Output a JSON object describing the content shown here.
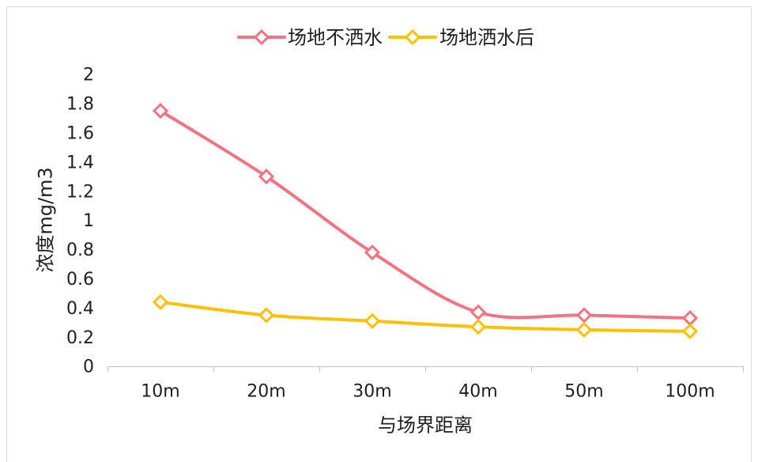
{
  "chart_data": {
    "type": "line",
    "categories": [
      "10m",
      "20m",
      "30m",
      "40m",
      "50m",
      "100m"
    ],
    "series": [
      {
        "name": "场地不洒水",
        "color": "#F27482",
        "values": [
          1.75,
          1.3,
          0.78,
          0.37,
          0.35,
          0.33
        ]
      },
      {
        "name": "场地洒水后",
        "color": "#FFC000",
        "values": [
          0.44,
          0.35,
          0.31,
          0.27,
          0.25,
          0.24
        ]
      }
    ],
    "xlabel": "与场界距离",
    "ylabel": "浓度mg/m3",
    "ylim": [
      0,
      2
    ],
    "yticks": [
      0,
      0.2,
      0.4,
      0.6,
      0.8,
      1,
      1.2,
      1.4,
      1.6,
      1.8,
      2
    ],
    "legend": "top",
    "grid": false,
    "smooth": true,
    "marker": "diamond"
  }
}
